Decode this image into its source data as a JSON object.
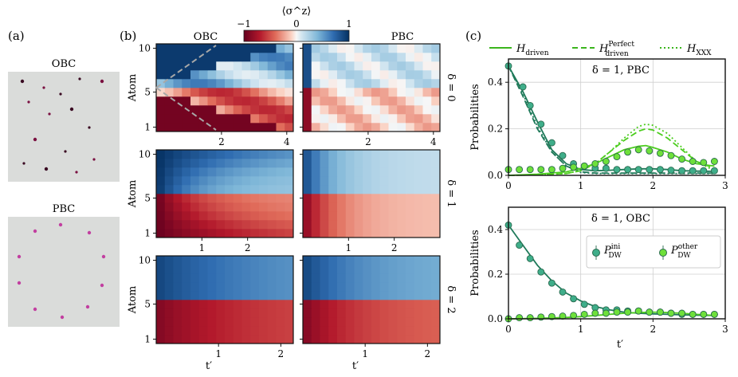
{
  "panel_labels": {
    "a": "(a)",
    "b": "(b)",
    "c": "(c)"
  },
  "panel_a": {
    "obc_label": "OBC",
    "pbc_label": "PBC",
    "obc_atom_count": 10,
    "pbc_atom_count": 10
  },
  "panel_b": {
    "col_labels": [
      "OBC",
      "PBC"
    ],
    "colorbar": {
      "label": "⟨σ^z⟩",
      "min": -1,
      "mid": 0,
      "max": 1,
      "tick_labels": [
        "−1",
        "0",
        "1"
      ]
    },
    "ylabel": "Atom",
    "xlabel": "t′",
    "y_tick_labels": [
      "1",
      "5",
      "10"
    ],
    "rows": [
      {
        "delta_label": "δ = 0",
        "delta": 0,
        "t_max": 4.2,
        "x_ticks": [
          2,
          4
        ],
        "x_tick_labels": [
          "2",
          "4"
        ]
      },
      {
        "delta_label": "δ = 1",
        "delta": 1,
        "t_max": 3.0,
        "x_ticks": [
          1,
          2
        ],
        "x_tick_labels": [
          "1",
          "2"
        ]
      },
      {
        "delta_label": "δ = 2",
        "delta": 2,
        "t_max": 2.2,
        "x_ticks": [
          1,
          2
        ],
        "x_tick_labels": [
          "1",
          "2"
        ]
      }
    ],
    "n_atoms": 10,
    "n_time_bins": 16
  },
  "chart_data": [
    {
      "type": "line",
      "title": "δ = 1, PBC",
      "xlabel": "",
      "ylabel": "Probabilities",
      "xlim": [
        0,
        3
      ],
      "ylim": [
        0,
        0.5
      ],
      "x_ticks": [
        0,
        1,
        2,
        3
      ],
      "x_tick_labels": [
        "0",
        "1",
        "2",
        "3"
      ],
      "y_ticks": [
        0,
        0.2,
        0.4
      ],
      "y_tick_labels": [
        "0.0",
        "0.2",
        "0.4"
      ],
      "grid": true,
      "legend_items": [
        {
          "label": "H",
          "sub": "driven",
          "sup": "",
          "style": "solid"
        },
        {
          "label": "H",
          "sub": "driven",
          "sup": "Perfect",
          "style": "dashed"
        },
        {
          "label": "H",
          "sub": "XXX",
          "sup": "",
          "style": "dotted"
        }
      ],
      "legend_position": "above",
      "series": [
        {
          "name": "P_DW^ini H_driven",
          "style": "solid",
          "color": "#1f7a5a",
          "x": [
            0,
            0.2,
            0.4,
            0.6,
            0.8,
            1.0,
            1.2,
            1.4,
            1.6,
            1.8,
            2.0,
            2.2,
            2.4,
            2.6,
            2.85
          ],
          "y": [
            0.47,
            0.36,
            0.23,
            0.11,
            0.05,
            0.025,
            0.02,
            0.022,
            0.025,
            0.028,
            0.028,
            0.025,
            0.02,
            0.018,
            0.017
          ]
        },
        {
          "name": "P_DW^ini H_driven^Perfect",
          "style": "dashed",
          "color": "#1f7a5a",
          "x": [
            0,
            0.2,
            0.4,
            0.6,
            0.8,
            1.0,
            1.2,
            1.4,
            1.6,
            1.8,
            2.0,
            2.2,
            2.4,
            2.6,
            2.85
          ],
          "y": [
            0.47,
            0.34,
            0.2,
            0.1,
            0.04,
            0.015,
            0.01,
            0.01,
            0.01,
            0.01,
            0.01,
            0.01,
            0.01,
            0.01,
            0.01
          ]
        },
        {
          "name": "P_DW^ini H_XXX",
          "style": "dotted",
          "color": "#1f7a5a",
          "x": [
            0,
            0.2,
            0.4,
            0.6,
            0.8,
            1.0,
            1.2,
            1.4,
            1.6,
            1.8,
            2.0,
            2.2,
            2.4,
            2.6,
            2.85
          ],
          "y": [
            0.47,
            0.35,
            0.21,
            0.1,
            0.04,
            0.012,
            0.008,
            0.008,
            0.008,
            0.008,
            0.008,
            0.008,
            0.008,
            0.008,
            0.008
          ]
        },
        {
          "name": "P_DW^other H_driven",
          "style": "solid",
          "color": "#4ccd1e",
          "x": [
            0,
            0.4,
            0.8,
            1.0,
            1.2,
            1.4,
            1.6,
            1.8,
            1.9,
            2.0,
            2.2,
            2.4,
            2.6,
            2.85
          ],
          "y": [
            0.0,
            0.005,
            0.015,
            0.03,
            0.05,
            0.08,
            0.11,
            0.125,
            0.128,
            0.12,
            0.1,
            0.07,
            0.05,
            0.04
          ]
        },
        {
          "name": "P_DW^other H_driven^Perfect",
          "style": "dashed",
          "color": "#4ccd1e",
          "x": [
            0,
            0.4,
            0.8,
            1.0,
            1.2,
            1.4,
            1.6,
            1.8,
            1.9,
            2.0,
            2.2,
            2.4,
            2.6,
            2.85
          ],
          "y": [
            0.0,
            0.002,
            0.008,
            0.02,
            0.05,
            0.1,
            0.15,
            0.19,
            0.2,
            0.195,
            0.16,
            0.11,
            0.06,
            0.03
          ]
        },
        {
          "name": "P_DW^other H_XXX",
          "style": "dotted",
          "color": "#4ccd1e",
          "x": [
            0,
            0.4,
            0.8,
            1.0,
            1.2,
            1.4,
            1.6,
            1.8,
            1.9,
            2.0,
            2.2,
            2.4,
            2.6,
            2.85
          ],
          "y": [
            0.0,
            0.002,
            0.008,
            0.02,
            0.05,
            0.1,
            0.16,
            0.21,
            0.22,
            0.215,
            0.18,
            0.12,
            0.06,
            0.02
          ]
        }
      ],
      "points": [
        {
          "name": "P_DW^ini data",
          "color": "#3fae8a",
          "x": [
            0.0,
            0.2,
            0.3,
            0.45,
            0.6,
            0.75,
            0.9,
            1.05,
            1.2,
            1.35,
            1.5,
            1.65,
            1.8,
            1.95,
            2.1,
            2.25,
            2.4,
            2.55,
            2.7,
            2.85
          ],
          "y": [
            0.47,
            0.38,
            0.3,
            0.22,
            0.14,
            0.085,
            0.05,
            0.04,
            0.03,
            0.03,
            0.025,
            0.025,
            0.025,
            0.025,
            0.025,
            0.022,
            0.02,
            0.02,
            0.02,
            0.02
          ]
        },
        {
          "name": "P_DW^other data",
          "color": "#6ee03a",
          "x": [
            0.0,
            0.15,
            0.3,
            0.45,
            0.6,
            0.75,
            0.9,
            1.05,
            1.2,
            1.35,
            1.5,
            1.65,
            1.8,
            1.95,
            2.1,
            2.25,
            2.4,
            2.55,
            2.7,
            2.85
          ],
          "y": [
            0.025,
            0.025,
            0.025,
            0.025,
            0.025,
            0.03,
            0.035,
            0.04,
            0.05,
            0.06,
            0.08,
            0.1,
            0.11,
            0.105,
            0.095,
            0.085,
            0.07,
            0.06,
            0.055,
            0.06
          ]
        }
      ]
    },
    {
      "type": "line",
      "title": "δ = 1, OBC",
      "xlabel": "t′",
      "ylabel": "Probabilities",
      "xlim": [
        0,
        3
      ],
      "ylim": [
        0,
        0.5
      ],
      "x_ticks": [
        0,
        1,
        2,
        3
      ],
      "x_tick_labels": [
        "0",
        "1",
        "2",
        "3"
      ],
      "y_ticks": [
        0,
        0.2,
        0.4
      ],
      "y_tick_labels": [
        "0.0",
        "0.2",
        "0.4"
      ],
      "grid": true,
      "legend_items": [
        {
          "label": "P",
          "sub": "DW",
          "sup": "ini",
          "color": "#3fae8a"
        },
        {
          "label": "P",
          "sub": "DW",
          "sup": "other",
          "color": "#6ee03a"
        }
      ],
      "legend_position": "center-right",
      "series": [
        {
          "name": "P_DW^ini H_driven",
          "style": "solid",
          "color": "#1f7a5a",
          "x": [
            0,
            0.2,
            0.4,
            0.6,
            0.8,
            1.0,
            1.2,
            1.4,
            1.6,
            1.8,
            2.0,
            2.2,
            2.4,
            2.6,
            2.85
          ],
          "y": [
            0.42,
            0.33,
            0.24,
            0.17,
            0.115,
            0.08,
            0.055,
            0.04,
            0.03,
            0.025,
            0.022,
            0.02,
            0.018,
            0.016,
            0.015
          ]
        },
        {
          "name": "P_DW^other H_driven",
          "style": "solid",
          "color": "#4ccd1e",
          "x": [
            0,
            0.4,
            0.8,
            1.0,
            1.2,
            1.4,
            1.6,
            1.8,
            2.0,
            2.2,
            2.4,
            2.6,
            2.85
          ],
          "y": [
            0.0,
            0.002,
            0.006,
            0.01,
            0.015,
            0.02,
            0.025,
            0.028,
            0.03,
            0.028,
            0.025,
            0.02,
            0.015
          ]
        }
      ],
      "points": [
        {
          "name": "P_DW^ini data",
          "color": "#3fae8a",
          "x": [
            0.0,
            0.15,
            0.3,
            0.45,
            0.6,
            0.75,
            0.9,
            1.05,
            1.2,
            1.35,
            1.5,
            1.65,
            1.8,
            1.95,
            2.1,
            2.25,
            2.4,
            2.55,
            2.7,
            2.85
          ],
          "y": [
            0.42,
            0.33,
            0.27,
            0.21,
            0.16,
            0.12,
            0.09,
            0.065,
            0.05,
            0.04,
            0.04,
            0.035,
            0.035,
            0.03,
            0.03,
            0.025,
            0.02,
            0.02,
            0.02,
            0.02
          ]
        },
        {
          "name": "P_DW^other data",
          "color": "#6ee03a",
          "x": [
            0.0,
            0.15,
            0.3,
            0.45,
            0.6,
            0.75,
            0.9,
            1.05,
            1.2,
            1.35,
            1.5,
            1.65,
            1.8,
            1.95,
            2.1,
            2.25,
            2.4,
            2.55,
            2.7,
            2.85
          ],
          "y": [
            0.0,
            0.005,
            0.005,
            0.008,
            0.01,
            0.012,
            0.015,
            0.02,
            0.025,
            0.025,
            0.03,
            0.03,
            0.035,
            0.03,
            0.03,
            0.025,
            0.025,
            0.02,
            0.02,
            0.02
          ]
        }
      ]
    }
  ]
}
